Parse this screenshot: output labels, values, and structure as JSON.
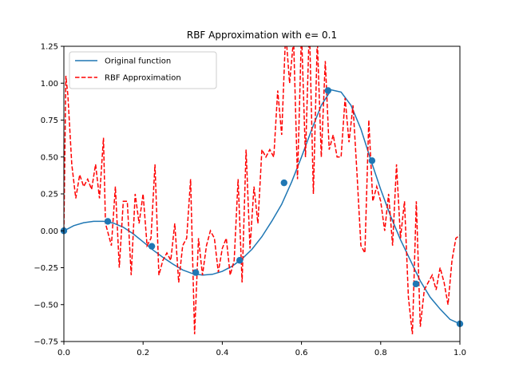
{
  "chart_data": {
    "type": "line",
    "title": "RBF Approximation with e= 0.1",
    "xlabel": "",
    "ylabel": "",
    "xlim": [
      0.0,
      1.0
    ],
    "ylim": [
      -0.75,
      1.25
    ],
    "grid": false,
    "legend_position": "top-left",
    "x_ticks": [
      "0.0",
      "0.2",
      "0.4",
      "0.6",
      "0.8",
      "1.0"
    ],
    "y_ticks": [
      "−0.75",
      "−0.50",
      "−0.25",
      "0.00",
      "0.25",
      "0.50",
      "0.75",
      "1.00",
      "1.25"
    ],
    "series": [
      {
        "name": "Original function",
        "color": "#1f77b4",
        "style": "solid",
        "x": [
          0.0,
          0.025,
          0.05,
          0.075,
          0.1,
          0.125,
          0.15,
          0.175,
          0.2,
          0.225,
          0.25,
          0.275,
          0.3,
          0.325,
          0.35,
          0.375,
          0.4,
          0.425,
          0.45,
          0.475,
          0.5,
          0.525,
          0.55,
          0.575,
          0.6,
          0.625,
          0.65,
          0.675,
          0.7,
          0.725,
          0.75,
          0.775,
          0.8,
          0.825,
          0.85,
          0.875,
          0.9,
          0.925,
          0.95,
          0.975,
          1.0
        ],
        "values": [
          0.0,
          0.035,
          0.055,
          0.064,
          0.064,
          0.052,
          0.024,
          -0.02,
          -0.075,
          -0.13,
          -0.18,
          -0.225,
          -0.265,
          -0.29,
          -0.3,
          -0.295,
          -0.275,
          -0.24,
          -0.19,
          -0.125,
          -0.04,
          0.065,
          0.18,
          0.33,
          0.5,
          0.68,
          0.85,
          0.955,
          0.94,
          0.85,
          0.69,
          0.48,
          0.28,
          0.1,
          -0.06,
          -0.2,
          -0.34,
          -0.45,
          -0.53,
          -0.6,
          -0.63
        ]
      },
      {
        "name": "RBF Approximation",
        "color": "#ff0000",
        "style": "dashed",
        "x": [
          0.0,
          0.005,
          0.01,
          0.02,
          0.03,
          0.04,
          0.05,
          0.06,
          0.07,
          0.08,
          0.09,
          0.1,
          0.105,
          0.11,
          0.12,
          0.13,
          0.14,
          0.15,
          0.16,
          0.17,
          0.18,
          0.19,
          0.2,
          0.21,
          0.22,
          0.23,
          0.24,
          0.25,
          0.26,
          0.27,
          0.28,
          0.29,
          0.3,
          0.31,
          0.32,
          0.33,
          0.34,
          0.35,
          0.36,
          0.37,
          0.38,
          0.39,
          0.4,
          0.41,
          0.42,
          0.43,
          0.44,
          0.45,
          0.46,
          0.47,
          0.48,
          0.49,
          0.5,
          0.51,
          0.52,
          0.53,
          0.54,
          0.55,
          0.56,
          0.57,
          0.58,
          0.59,
          0.6,
          0.61,
          0.62,
          0.63,
          0.64,
          0.65,
          0.66,
          0.67,
          0.68,
          0.69,
          0.7,
          0.71,
          0.72,
          0.73,
          0.74,
          0.75,
          0.76,
          0.77,
          0.78,
          0.79,
          0.8,
          0.81,
          0.82,
          0.83,
          0.84,
          0.85,
          0.86,
          0.87,
          0.88,
          0.89,
          0.9,
          0.91,
          0.92,
          0.93,
          0.94,
          0.95,
          0.96,
          0.97,
          0.98,
          0.99,
          1.0
        ],
        "values": [
          0.0,
          1.05,
          0.92,
          0.45,
          0.22,
          0.38,
          0.3,
          0.35,
          0.28,
          0.45,
          0.22,
          0.63,
          0.05,
          0.0,
          -0.1,
          0.3,
          -0.25,
          0.2,
          0.2,
          -0.3,
          0.25,
          0.05,
          0.25,
          -0.1,
          -0.05,
          0.45,
          -0.3,
          -0.2,
          -0.15,
          -0.2,
          0.05,
          -0.35,
          -0.1,
          -0.05,
          0.35,
          -0.7,
          -0.05,
          -0.3,
          -0.1,
          0.0,
          -0.05,
          -0.28,
          -0.12,
          -0.05,
          -0.3,
          -0.2,
          0.35,
          -0.35,
          0.55,
          -0.12,
          0.3,
          0.05,
          0.55,
          0.5,
          0.55,
          0.5,
          0.95,
          0.65,
          1.35,
          1.0,
          1.3,
          0.35,
          1.35,
          0.5,
          1.4,
          0.25,
          1.3,
          0.5,
          1.15,
          0.55,
          0.65,
          0.5,
          0.5,
          0.9,
          0.6,
          0.85,
          0.4,
          -0.1,
          -0.15,
          0.75,
          0.2,
          0.3,
          0.2,
          0.0,
          0.25,
          -0.1,
          0.45,
          -0.05,
          0.2,
          -0.45,
          -0.7,
          0.2,
          -0.65,
          -0.4,
          -0.35,
          -0.3,
          -0.4,
          -0.25,
          -0.35,
          -0.5,
          -0.2,
          -0.05,
          -0.03
        ]
      }
    ],
    "points": {
      "color": "#1f77b4",
      "x": [
        0.0,
        0.111,
        0.222,
        0.333,
        0.444,
        0.556,
        0.667,
        0.778,
        0.889,
        1.0
      ],
      "y": [
        0.0,
        0.064,
        -0.105,
        -0.283,
        -0.2,
        0.325,
        0.95,
        0.475,
        -0.36,
        -0.63
      ]
    }
  }
}
